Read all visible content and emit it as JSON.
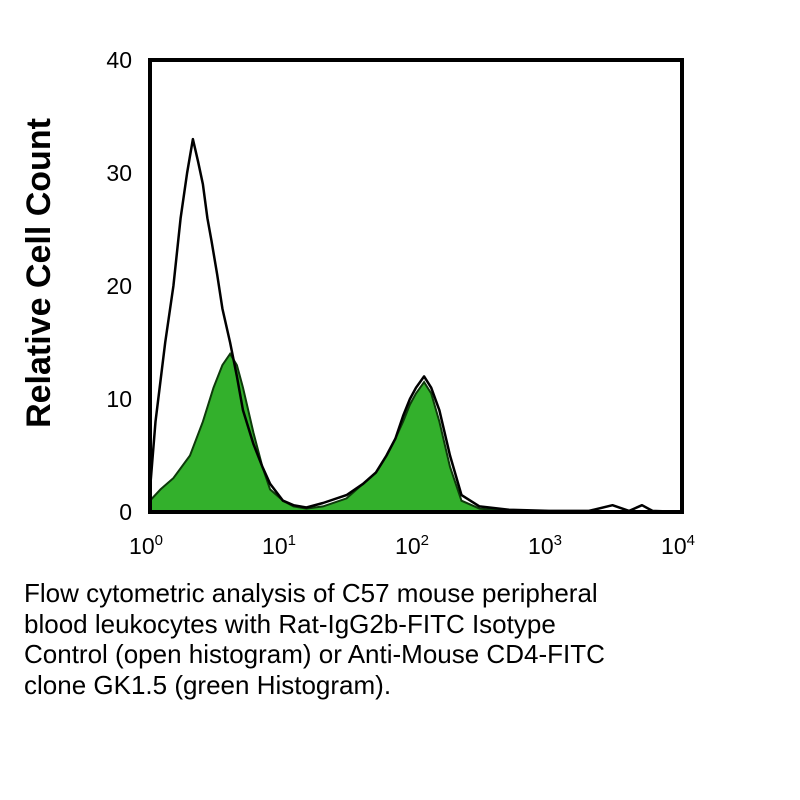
{
  "chart_data": {
    "type": "area",
    "xlabel": "",
    "ylabel": "Relative Cell Count",
    "xscale": "log",
    "xlim": [
      1,
      10000
    ],
    "ylim": [
      0,
      40
    ],
    "y_ticks": [
      {
        "value": 0,
        "label": "0"
      },
      {
        "value": 10,
        "label": "10"
      },
      {
        "value": 20,
        "label": "20"
      },
      {
        "value": 30,
        "label": "30"
      },
      {
        "value": 40,
        "label": "40"
      }
    ],
    "x_ticks": [
      {
        "value": 1,
        "base": "10",
        "exp": "0"
      },
      {
        "value": 10,
        "base": "10",
        "exp": "1"
      },
      {
        "value": 100,
        "base": "10",
        "exp": "2"
      },
      {
        "value": 1000,
        "base": "10",
        "exp": "3"
      },
      {
        "value": 10000,
        "base": "10",
        "exp": "4"
      }
    ],
    "series": [
      {
        "style": "open",
        "color": "#000000",
        "x": [
          1.0,
          1.1,
          1.3,
          1.5,
          1.7,
          1.9,
          2.1,
          2.3,
          2.5,
          2.7,
          2.9,
          3.2,
          3.5,
          4.0,
          4.5,
          5.0,
          6.0,
          7.0,
          8.0,
          10.0,
          12.0,
          15.0,
          20.0,
          30.0,
          40.0,
          50.0,
          60.0,
          70.0,
          80.0,
          90.0,
          100.0,
          115.0,
          130.0,
          150.0,
          180.0,
          220.0,
          300.0,
          500.0,
          1000.0,
          2000.0,
          3000.0,
          4000.0,
          5000.0,
          6000.0,
          10000.0
        ],
        "y": [
          2,
          8,
          15,
          20,
          26,
          30,
          33,
          31,
          29,
          26,
          24,
          21,
          18,
          15,
          12,
          9,
          6,
          4,
          2.5,
          1,
          0.6,
          0.4,
          0.8,
          1.5,
          2.5,
          3.5,
          5,
          6.5,
          8.5,
          10,
          11,
          12,
          11,
          9,
          5,
          1.5,
          0.5,
          0.2,
          0.1,
          0.1,
          0.6,
          0.1,
          0.6,
          0.1,
          0.0
        ]
      },
      {
        "style": "filled",
        "color": "#33b02c",
        "x": [
          1.0,
          1.2,
          1.5,
          2.0,
          2.5,
          3.0,
          3.5,
          4.0,
          4.5,
          5.0,
          6.0,
          7.0,
          8.0,
          10.0,
          12.0,
          15.0,
          20.0,
          30.0,
          40.0,
          50.0,
          60.0,
          70.0,
          80.0,
          90.0,
          100.0,
          115.0,
          130.0,
          150.0,
          180.0,
          220.0,
          300.0,
          500.0,
          10000.0
        ],
        "y": [
          1,
          2,
          3,
          5,
          8,
          11,
          13,
          14,
          13,
          11,
          7,
          4,
          2,
          1,
          0.5,
          0.3,
          0.5,
          1.2,
          2.5,
          3.5,
          5,
          6.5,
          8,
          9.5,
          10.5,
          11.5,
          10.5,
          8,
          4,
          1,
          0.3,
          0.1,
          0.0
        ]
      }
    ]
  },
  "caption": {
    "lines": [
      "Flow cytometric analysis of C57 mouse peripheral",
      "blood leukocytes with Rat-IgG2b-FITC Isotype",
      "Control (open histogram) or Anti-Mouse CD4-FITC",
      "clone GK1.5 (green Histogram)."
    ]
  }
}
